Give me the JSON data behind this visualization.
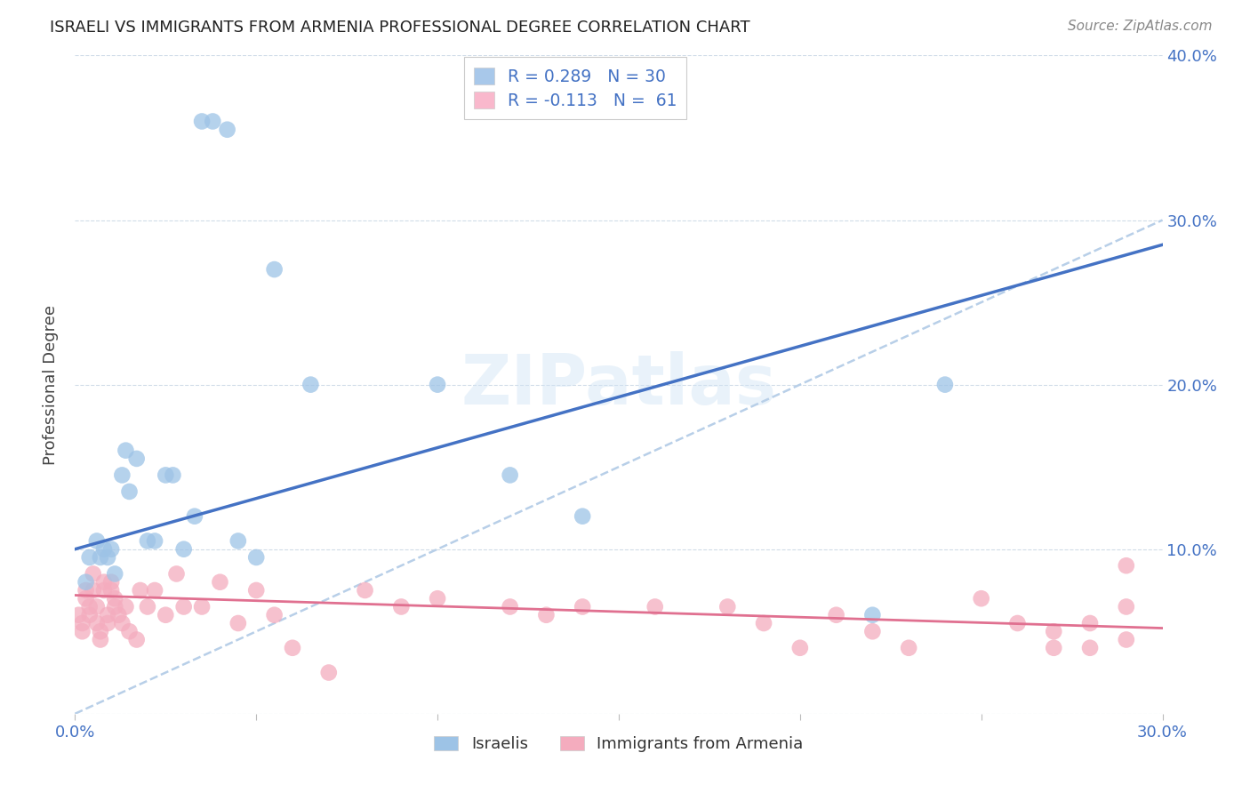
{
  "title": "ISRAELI VS IMMIGRANTS FROM ARMENIA PROFESSIONAL DEGREE CORRELATION CHART",
  "source": "Source: ZipAtlas.com",
  "ylabel": "Professional Degree",
  "xlim": [
    0.0,
    0.3
  ],
  "ylim": [
    0.0,
    0.4
  ],
  "xticks": [
    0.0,
    0.05,
    0.1,
    0.15,
    0.2,
    0.25,
    0.3
  ],
  "yticks": [
    0.0,
    0.1,
    0.2,
    0.3,
    0.4
  ],
  "right_ytick_labels": [
    "",
    "10.0%",
    "20.0%",
    "30.0%",
    "40.0%"
  ],
  "xtick_labels": [
    "0.0%",
    "",
    "",
    "",
    "",
    "",
    "30.0%"
  ],
  "legend_label1": "R = 0.289   N = 30",
  "legend_label2": "R = -0.113   N =  61",
  "legend_color1": "#a8c8ea",
  "legend_color2": "#f9b8cc",
  "dot_color1": "#9dc3e6",
  "dot_color2": "#f4acbe",
  "line_color1": "#4472c4",
  "line_color2": "#e07090",
  "dashed_line_color": "#b8cfe8",
  "axis_color": "#4472c4",
  "grid_color": "#d0dce8",
  "background_color": "#ffffff",
  "israelis_x": [
    0.003,
    0.004,
    0.006,
    0.007,
    0.008,
    0.009,
    0.01,
    0.011,
    0.013,
    0.014,
    0.015,
    0.017,
    0.02,
    0.022,
    0.025,
    0.027,
    0.03,
    0.033,
    0.035,
    0.038,
    0.042,
    0.045,
    0.05,
    0.055,
    0.065,
    0.1,
    0.12,
    0.14,
    0.22,
    0.24
  ],
  "israelis_y": [
    0.08,
    0.095,
    0.105,
    0.095,
    0.1,
    0.095,
    0.1,
    0.085,
    0.145,
    0.16,
    0.135,
    0.155,
    0.105,
    0.105,
    0.145,
    0.145,
    0.1,
    0.12,
    0.36,
    0.36,
    0.355,
    0.105,
    0.095,
    0.27,
    0.2,
    0.2,
    0.145,
    0.12,
    0.06,
    0.2
  ],
  "armenia_x": [
    0.001,
    0.002,
    0.002,
    0.003,
    0.003,
    0.004,
    0.004,
    0.005,
    0.005,
    0.006,
    0.006,
    0.007,
    0.007,
    0.008,
    0.008,
    0.009,
    0.009,
    0.01,
    0.01,
    0.011,
    0.011,
    0.012,
    0.013,
    0.014,
    0.015,
    0.017,
    0.018,
    0.02,
    0.022,
    0.025,
    0.028,
    0.03,
    0.035,
    0.04,
    0.045,
    0.05,
    0.055,
    0.06,
    0.07,
    0.08,
    0.09,
    0.1,
    0.12,
    0.13,
    0.14,
    0.16,
    0.18,
    0.19,
    0.2,
    0.21,
    0.22,
    0.23,
    0.25,
    0.26,
    0.27,
    0.28,
    0.29,
    0.29,
    0.27,
    0.29,
    0.28
  ],
  "armenia_y": [
    0.06,
    0.055,
    0.05,
    0.075,
    0.07,
    0.065,
    0.06,
    0.085,
    0.075,
    0.065,
    0.055,
    0.05,
    0.045,
    0.08,
    0.075,
    0.06,
    0.055,
    0.08,
    0.075,
    0.065,
    0.07,
    0.06,
    0.055,
    0.065,
    0.05,
    0.045,
    0.075,
    0.065,
    0.075,
    0.06,
    0.085,
    0.065,
    0.065,
    0.08,
    0.055,
    0.075,
    0.06,
    0.04,
    0.025,
    0.075,
    0.065,
    0.07,
    0.065,
    0.06,
    0.065,
    0.065,
    0.065,
    0.055,
    0.04,
    0.06,
    0.05,
    0.04,
    0.07,
    0.055,
    0.05,
    0.055,
    0.045,
    0.065,
    0.04,
    0.09,
    0.04
  ],
  "blue_line_x0": 0.0,
  "blue_line_y0": 0.1,
  "blue_line_x1": 0.3,
  "blue_line_y1": 0.285,
  "pink_line_x0": 0.0,
  "pink_line_y0": 0.072,
  "pink_line_x1": 0.3,
  "pink_line_y1": 0.052
}
